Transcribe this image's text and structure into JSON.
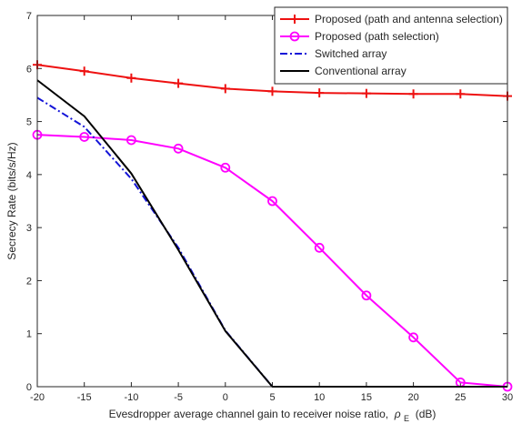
{
  "chart_data": {
    "type": "line",
    "title": "",
    "xlabel": "Evesdropper average channel gain to receiver noise ratio, ",
    "xlabel_symbol": "ρ",
    "xlabel_sub": "E",
    "xlabel_unit": " (dB)",
    "ylabel": "Secrecy Rate (bits/s/Hz)",
    "xlim": [
      -20,
      30
    ],
    "ylim": [
      0,
      7
    ],
    "xticks": [
      -20,
      -15,
      -10,
      -5,
      0,
      5,
      10,
      15,
      20,
      25,
      30
    ],
    "yticks": [
      0,
      1,
      2,
      3,
      4,
      5,
      6,
      7
    ],
    "x": [
      -20,
      -15,
      -10,
      -5,
      0,
      5,
      10,
      15,
      20,
      25,
      30
    ],
    "grid": false,
    "legend_position": "top-right",
    "series": [
      {
        "name": "Proposed (path and antenna selection)",
        "color": "#ee1111",
        "marker": "plus",
        "line": "solid",
        "values": [
          6.07,
          5.95,
          5.82,
          5.72,
          5.62,
          5.57,
          5.54,
          5.53,
          5.52,
          5.52,
          5.48
        ]
      },
      {
        "name": "Proposed (path selection)",
        "color": "#ff00ff",
        "marker": "circle",
        "line": "solid",
        "values": [
          4.75,
          4.71,
          4.65,
          4.49,
          4.13,
          3.5,
          2.62,
          1.72,
          0.93,
          0.08,
          0.0
        ]
      },
      {
        "name": "Switched array",
        "color": "#1414d8",
        "marker": "none",
        "line": "dashdot",
        "values": [
          5.45,
          4.9,
          3.92,
          2.62,
          1.06,
          0.0,
          0.0,
          0.0,
          0.0,
          0.0,
          0.0
        ]
      },
      {
        "name": "Conventional array",
        "color": "#000000",
        "marker": "none",
        "line": "solid",
        "values": [
          5.78,
          5.1,
          4.02,
          2.58,
          1.05,
          0.0,
          0.0,
          0.0,
          0.0,
          0.0,
          0.0
        ]
      }
    ]
  }
}
